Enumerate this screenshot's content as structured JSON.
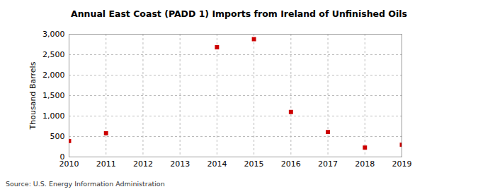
{
  "chart_data": {
    "type": "scatter",
    "title": "Annual East Coast (PADD 1) Imports from Ireland of Unfinished Oils",
    "y_label": "Thousand Barrels",
    "source": "Source: U.S. Energy Information Administration",
    "x": [
      2010,
      2011,
      2014,
      2015,
      2016,
      2017,
      2018,
      2019
    ],
    "values": [
      390,
      580,
      2680,
      2880,
      1100,
      610,
      230,
      300
    ],
    "color": "#cc0000",
    "marker": "square",
    "xlim": [
      2010,
      2019
    ],
    "xticks": [
      2010,
      2011,
      2012,
      2013,
      2014,
      2015,
      2016,
      2017,
      2018,
      2019
    ],
    "ylim": [
      0,
      3000
    ],
    "yticks": [
      0,
      500,
      {
        "value": 1000,
        "label": "1,000"
      },
      {
        "value": 1500,
        "label": "1,500"
      },
      {
        "value": 2000,
        "label": "2,000"
      },
      {
        "value": 2500,
        "label": "2,500"
      },
      {
        "value": 3000,
        "label": "3,000"
      }
    ],
    "grid": true
  }
}
